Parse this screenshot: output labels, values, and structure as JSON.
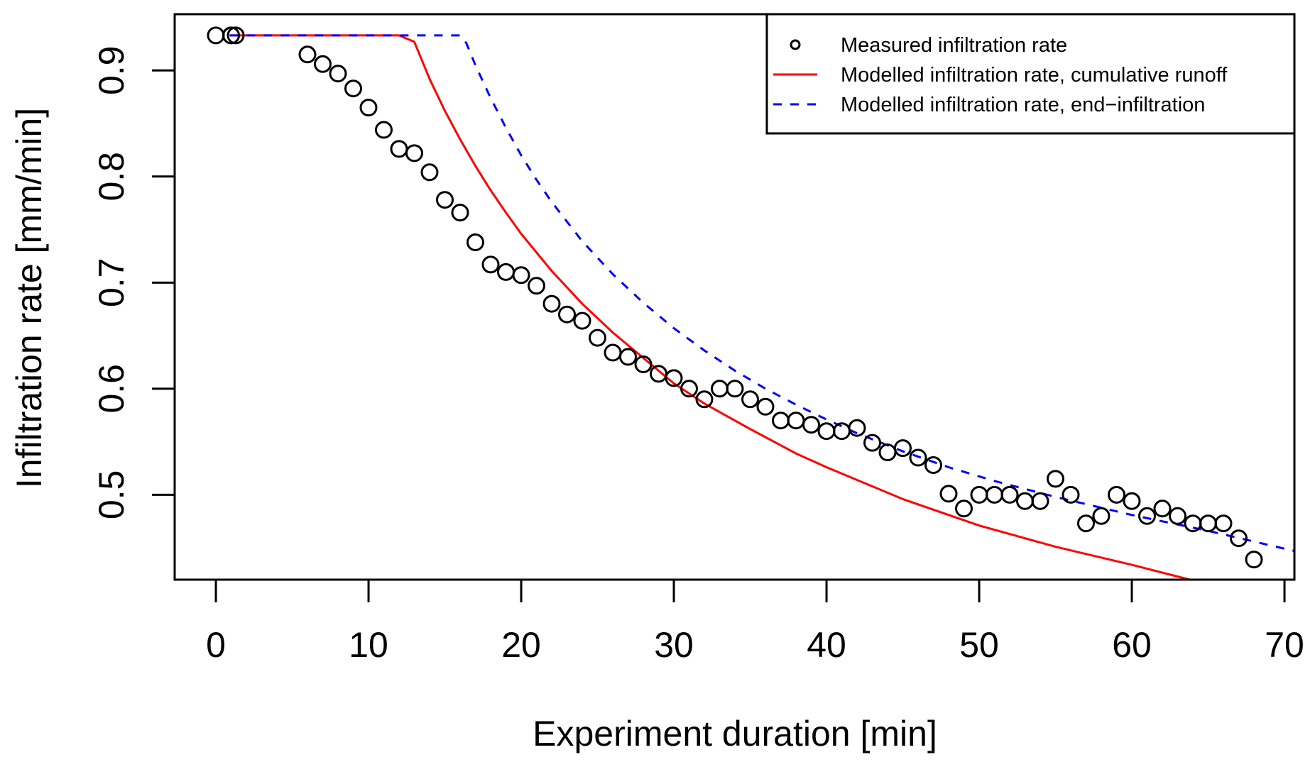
{
  "chart_data": {
    "type": "scatter",
    "title": "",
    "xlabel": "Experiment duration [min]",
    "ylabel": "Infiltration rate [mm/min]",
    "xlim": [
      -2.7,
      70.65
    ],
    "ylim": [
      0.42,
      0.953
    ],
    "grid": false,
    "x_ticks": [
      0,
      10,
      20,
      30,
      40,
      50,
      60,
      70
    ],
    "x_tick_labels": [
      "0",
      "10",
      "20",
      "30",
      "40",
      "50",
      "60",
      "70"
    ],
    "y_ticks": [
      0.5,
      0.6,
      0.7,
      0.8,
      0.9
    ],
    "y_tick_labels": [
      "0.5",
      "0.6",
      "0.7",
      "0.8",
      "0.9"
    ],
    "legend": {
      "placement": "top-right",
      "entries": [
        {
          "label": "Measured infiltration rate",
          "symbol": "open-circle",
          "color": "#000000"
        },
        {
          "label": "Modelled infiltration rate, cumulative runoff",
          "symbol": "solid-line",
          "color": "#ff0000"
        },
        {
          "label": "Modelled infiltration rate, end−infiltration",
          "symbol": "dashed-line",
          "color": "#0000ff"
        }
      ]
    },
    "series": [
      {
        "name": "Measured infiltration rate",
        "kind": "points",
        "color": "#000000",
        "x": [
          0,
          1,
          1.3,
          6,
          7,
          8,
          9,
          10,
          11,
          12,
          13,
          14,
          15,
          16,
          17,
          18,
          19,
          20,
          21,
          22,
          23,
          24,
          25,
          26,
          27,
          28,
          29,
          30,
          31,
          32,
          33,
          34,
          35,
          36,
          37,
          38,
          39,
          40,
          41,
          42,
          43,
          44,
          45,
          46,
          47,
          48,
          49,
          50,
          51,
          52,
          53,
          54,
          55,
          56,
          57,
          58,
          59,
          60,
          61,
          62,
          63,
          64,
          65,
          66,
          67,
          68
        ],
        "y": [
          0.933,
          0.933,
          0.933,
          0.915,
          0.906,
          0.897,
          0.883,
          0.865,
          0.844,
          0.826,
          0.822,
          0.804,
          0.778,
          0.766,
          0.738,
          0.717,
          0.71,
          0.707,
          0.697,
          0.68,
          0.67,
          0.664,
          0.648,
          0.634,
          0.63,
          0.623,
          0.614,
          0.61,
          0.6,
          0.59,
          0.6,
          0.6,
          0.59,
          0.583,
          0.57,
          0.57,
          0.566,
          0.56,
          0.56,
          0.563,
          0.549,
          0.54,
          0.544,
          0.535,
          0.528,
          0.501,
          0.487,
          0.5,
          0.5,
          0.5,
          0.494,
          0.494,
          0.515,
          0.5,
          0.473,
          0.48,
          0.5,
          0.494,
          0.48,
          0.487,
          0.48,
          0.473,
          0.473,
          0.473,
          0.459,
          0.439
        ]
      },
      {
        "name": "Modelled infiltration rate, cumulative runoff",
        "kind": "line",
        "style": "solid",
        "color": "#ff0000",
        "x": [
          0.9,
          12,
          13,
          14,
          15,
          16,
          17,
          18,
          19,
          20,
          22,
          24,
          26,
          28,
          30,
          32,
          35,
          38,
          40,
          45,
          50,
          55,
          60,
          63.8
        ],
        "y": [
          0.933,
          0.933,
          0.927,
          0.892,
          0.862,
          0.835,
          0.81,
          0.787,
          0.766,
          0.746,
          0.711,
          0.68,
          0.653,
          0.629,
          0.605,
          0.586,
          0.562,
          0.539,
          0.526,
          0.496,
          0.471,
          0.451,
          0.434,
          0.42
        ]
      },
      {
        "name": "Modelled infiltration rate, end−infiltration",
        "kind": "line",
        "style": "dashed",
        "color": "#0000ff",
        "x": [
          0.9,
          16,
          16.4,
          17,
          18,
          19,
          20,
          21,
          22,
          24,
          26,
          28,
          30,
          32,
          34,
          36,
          38,
          40,
          42,
          45,
          48,
          51,
          55,
          60,
          65,
          70.65
        ],
        "y": [
          0.933,
          0.933,
          0.926,
          0.905,
          0.874,
          0.846,
          0.82,
          0.797,
          0.776,
          0.739,
          0.708,
          0.681,
          0.657,
          0.636,
          0.617,
          0.6,
          0.585,
          0.571,
          0.558,
          0.541,
          0.526,
          0.513,
          0.498,
          0.481,
          0.466,
          0.447
        ]
      }
    ]
  }
}
